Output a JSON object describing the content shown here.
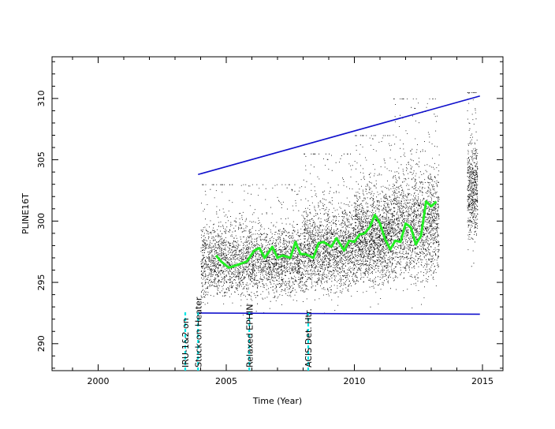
{
  "chart_data": {
    "type": "scatter",
    "title": "",
    "xlabel": "Time (Year)",
    "ylabel": "PLINE16T",
    "xlim": [
      1998.2,
      2015.8
    ],
    "ylim": [
      287.8,
      313.4
    ],
    "x_ticks": [
      2000,
      2005,
      2010,
      2015
    ],
    "y_ticks": [
      290,
      295,
      300,
      305,
      310
    ],
    "colors": {
      "points": "#000000",
      "smooth": "#22ee22",
      "envelope": "#1010cc",
      "events": "#00e5e5"
    },
    "scatter_bands": [
      {
        "x0": 2004.0,
        "x1": 2008.0,
        "lo": 291.5,
        "hi": 303.0,
        "mean": 296.8
      },
      {
        "x0": 2008.0,
        "x1": 2010.0,
        "lo": 291.8,
        "hi": 305.5,
        "mean": 297.8
      },
      {
        "x0": 2010.0,
        "x1": 2011.5,
        "lo": 292.0,
        "hi": 307.0,
        "mean": 298.8
      },
      {
        "x0": 2011.5,
        "x1": 2013.3,
        "lo": 292.2,
        "hi": 310.0,
        "mean": 299.8
      },
      {
        "x0": 2014.4,
        "x1": 2014.8,
        "lo": 294.5,
        "hi": 310.5,
        "mean": 302.5
      }
    ],
    "upper_envelope": {
      "x": [
        2003.9,
        2014.9
      ],
      "y": [
        303.8,
        310.2
      ]
    },
    "lower_envelope": {
      "x": [
        2003.9,
        2014.9
      ],
      "y": [
        292.5,
        292.4
      ]
    },
    "smooth_curve": {
      "x": [
        2004.6,
        2004.8,
        2005.1,
        2005.4,
        2005.8,
        2006.1,
        2006.3,
        2006.5,
        2006.8,
        2007.0,
        2007.2,
        2007.5,
        2007.7,
        2007.9,
        2008.1,
        2008.4,
        2008.6,
        2008.8,
        2009.1,
        2009.3,
        2009.6,
        2009.8,
        2010.0,
        2010.2,
        2010.4,
        2010.6,
        2010.8,
        2011.0,
        2011.2,
        2011.4,
        2011.6,
        2011.8,
        2012.0,
        2012.2,
        2012.4,
        2012.6,
        2012.8,
        2013.0,
        2013.2
      ],
      "y": [
        297.2,
        296.7,
        296.2,
        296.4,
        296.7,
        297.6,
        297.8,
        297.0,
        297.9,
        297.0,
        297.2,
        297.0,
        298.3,
        297.3,
        297.3,
        297.0,
        298.2,
        298.3,
        297.9,
        298.6,
        297.6,
        298.4,
        298.3,
        298.9,
        299.0,
        299.5,
        300.5,
        299.8,
        298.5,
        297.7,
        298.4,
        298.3,
        299.8,
        299.5,
        298.1,
        298.8,
        301.6,
        301.2,
        301.6
      ]
    },
    "events": [
      {
        "x": 2003.4,
        "label": "IRU-1&2 on"
      },
      {
        "x": 2003.9,
        "label": "Stuck-on Heater"
      },
      {
        "x": 2005.9,
        "label": "Relaxed EPHIN"
      },
      {
        "x": 2008.2,
        "label": "ACIS Det. Htr."
      }
    ]
  }
}
